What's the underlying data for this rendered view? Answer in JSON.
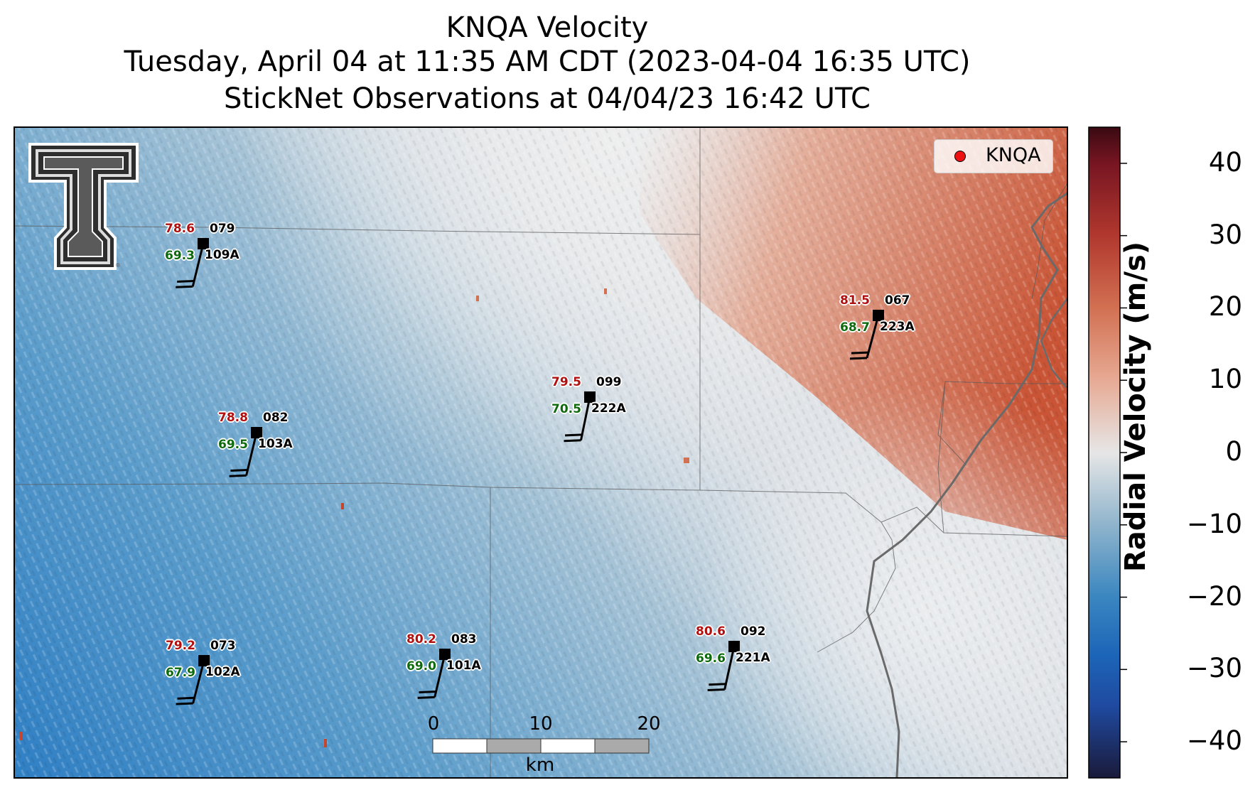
{
  "title": {
    "line1": "KNQA Velocity",
    "line2": "Tuesday, April 04 at 11:35 AM CDT (2023-04-04 16:35 UTC)",
    "line3": "StickNet Observations at 04/04/23 16:42 UTC"
  },
  "legend": {
    "label": "KNQA",
    "marker_color": "#ee1111"
  },
  "colorbar": {
    "title": "Radial Velocity (m/s)",
    "min": -45,
    "max": 45,
    "ticks": [
      "40",
      "30",
      "20",
      "10",
      "0",
      "−10",
      "−20",
      "−30",
      "−40"
    ],
    "tick_values": [
      40,
      30,
      20,
      10,
      0,
      -10,
      -20,
      -30,
      -40
    ],
    "stops": [
      {
        "v": -45,
        "c": "#1a1a3a"
      },
      {
        "v": -35,
        "c": "#1f4aa0"
      },
      {
        "v": -28,
        "c": "#1c65b8"
      },
      {
        "v": -20,
        "c": "#3a86c0"
      },
      {
        "v": -10,
        "c": "#8fb4cc"
      },
      {
        "v": 0,
        "c": "#e6e6e6"
      },
      {
        "v": 10,
        "c": "#e7aa94"
      },
      {
        "v": 20,
        "c": "#d27052"
      },
      {
        "v": 30,
        "c": "#b1382e"
      },
      {
        "v": 40,
        "c": "#771522"
      },
      {
        "v": 45,
        "c": "#3a0a12"
      }
    ]
  },
  "stations": [
    {
      "id": "109A",
      "temp": "78.6",
      "dew": "69.3",
      "dir": "079"
    },
    {
      "id": "103A",
      "temp": "78.8",
      "dew": "69.5",
      "dir": "082"
    },
    {
      "id": "222A",
      "temp": "79.5",
      "dew": "70.5",
      "dir": "099"
    },
    {
      "id": "223A",
      "temp": "81.5",
      "dew": "68.7",
      "dir": "067"
    },
    {
      "id": "102A",
      "temp": "79.2",
      "dew": "67.9",
      "dir": "073"
    },
    {
      "id": "101A",
      "temp": "80.2",
      "dew": "69.0",
      "dir": "083"
    },
    {
      "id": "221A",
      "temp": "80.6",
      "dew": "69.6",
      "dir": "092"
    }
  ],
  "scale_bar": {
    "labels": [
      "0",
      "10",
      "20"
    ],
    "unit": "km"
  },
  "logo": {
    "name": "Texas Tech Double T"
  }
}
